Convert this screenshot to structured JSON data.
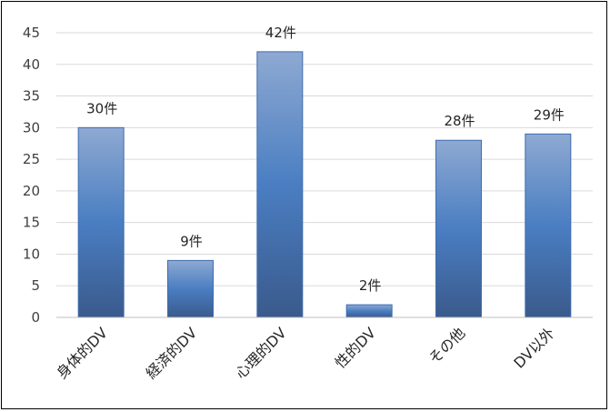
{
  "chart_data": {
    "type": "bar",
    "categories": [
      "身体的DV",
      "経済的DV",
      "心理的DV",
      "性的DV",
      "その他",
      "DV以外"
    ],
    "values": [
      30,
      9,
      42,
      2,
      28,
      29
    ],
    "data_labels": [
      "30件",
      "9件",
      "42件",
      "2件",
      "28件",
      "29件"
    ],
    "y_ticks": [
      "0",
      "5",
      "10",
      "15",
      "20",
      "25",
      "30",
      "35",
      "40",
      "45"
    ],
    "ylim": [
      0,
      45
    ],
    "title": "",
    "xlabel": "",
    "ylabel": "",
    "grid": true,
    "legend": "none",
    "colors": {
      "bar_top": "#8EA9D2",
      "bar_mid": "#4A7EC2",
      "bar_bottom": "#3A5A8C",
      "bar_stroke": "#3F6CB0",
      "grid": "#D9D9D9",
      "axis": "#BFBFBF"
    }
  }
}
